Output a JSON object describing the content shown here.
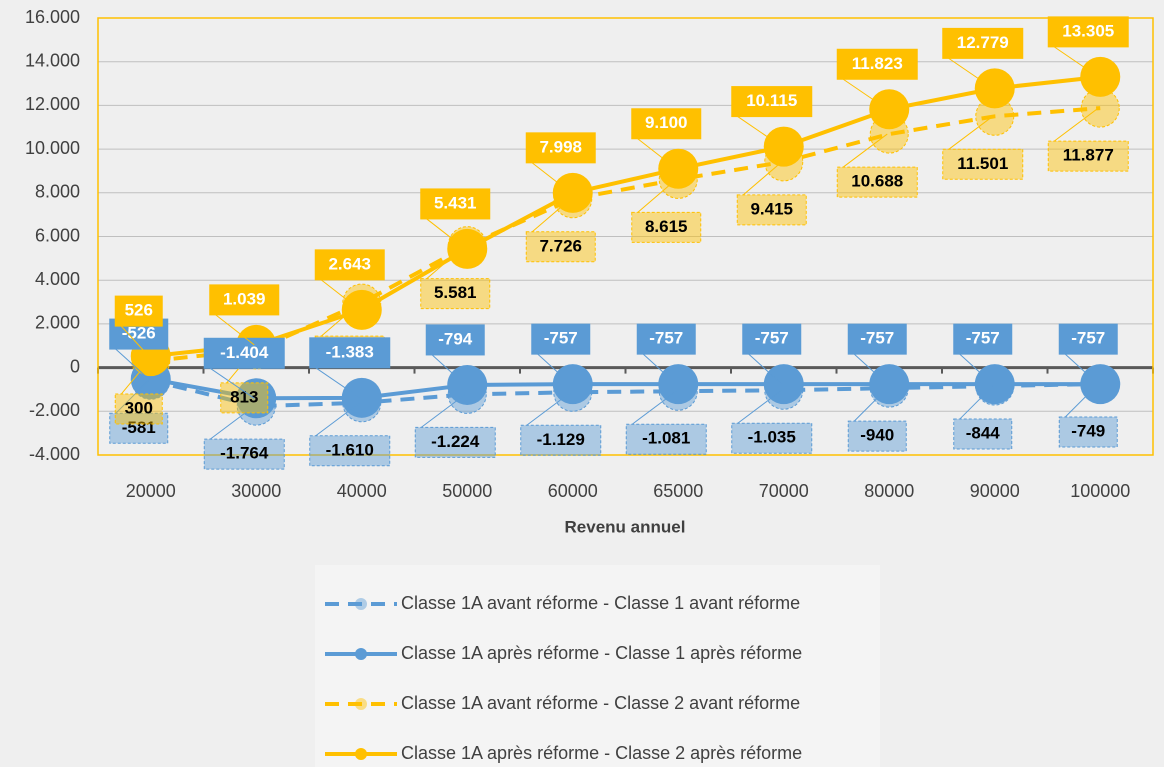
{
  "chart_data": {
    "type": "line",
    "x_label": "Revenu annuel",
    "categories": [
      "20000",
      "30000",
      "40000",
      "50000",
      "60000",
      "65000",
      "70000",
      "80000",
      "90000",
      "100000"
    ],
    "series": [
      {
        "name": "Classe 1A avant réforme - Classe 1 avant réforme",
        "color": "#5b9bd5",
        "line_style": "dashed",
        "values": [
          -581,
          -1764,
          -1610,
          -1224,
          -1129,
          -1081,
          -1035,
          -940,
          -844,
          -749
        ],
        "value_labels": [
          "-581",
          "-1.764",
          "-1.610",
          "-1.224",
          "-1.129",
          "-1.081",
          "-1.035",
          "-940",
          "-844",
          "-749"
        ]
      },
      {
        "name": "Classe 1A après réforme - Classe 1 après réforme",
        "color": "#5b9bd5",
        "line_style": "solid",
        "values": [
          -526,
          -1404,
          -1383,
          -794,
          -757,
          -757,
          -757,
          -757,
          -757,
          -757
        ],
        "value_labels": [
          "-526",
          "-1.404",
          "-1.383",
          "-794",
          "-757",
          "-757",
          "-757",
          "-757",
          "-757",
          "-757"
        ]
      },
      {
        "name": "Classe 1A avant réforme - Classe 2 avant réforme",
        "color": "#ffc000",
        "line_style": "dashed",
        "values": [
          300,
          813,
          2953,
          5581,
          7726,
          8615,
          9415,
          10688,
          11501,
          11877
        ],
        "value_labels": [
          "300",
          "813",
          "2.953",
          "5.581",
          "7.726",
          "8.615",
          "9.415",
          "10.688",
          "11.501",
          "11.877"
        ]
      },
      {
        "name": "Classe 1A après réforme - Classe 2 après réforme",
        "color": "#ffc000",
        "line_style": "solid",
        "values": [
          526,
          1039,
          2643,
          5431,
          7998,
          9100,
          10115,
          11823,
          12779,
          13305
        ],
        "value_labels": [
          "526",
          "1.039",
          "2.643",
          "5.431",
          "7.998",
          "9.100",
          "10.115",
          "11.823",
          "12.779",
          "13.305"
        ]
      }
    ],
    "ylim": [
      -4000,
      16000
    ],
    "yticks": [
      {
        "value": -4000,
        "label": "-4.000"
      },
      {
        "value": -2000,
        "label": "-2.000"
      },
      0,
      {
        "value": 2000,
        "label": "2.000"
      },
      {
        "value": 4000,
        "label": "4.000"
      },
      {
        "value": 6000,
        "label": "6.000"
      },
      {
        "value": 8000,
        "label": "8.000"
      },
      {
        "value": 10000,
        "label": "10.000"
      },
      {
        "value": 12000,
        "label": "12.000"
      },
      {
        "value": 14000,
        "label": "14.000"
      },
      {
        "value": 16000,
        "label": "16.000"
      }
    ],
    "grid": true
  }
}
